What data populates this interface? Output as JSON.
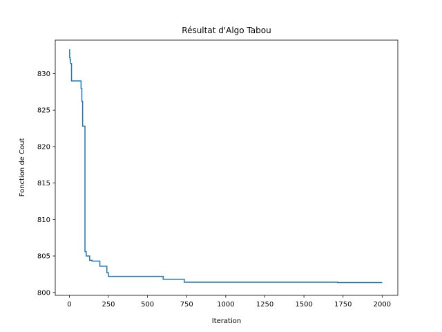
{
  "chart_data": {
    "type": "line",
    "title": "Résultat d'Algo Tabou",
    "xlabel": "Iteration",
    "ylabel": "Fonction de Cout",
    "xlim": [
      -90,
      2100
    ],
    "ylim": [
      799.6,
      834.6
    ],
    "xticks": [
      0,
      250,
      500,
      750,
      1000,
      1250,
      1500,
      1750,
      2000
    ],
    "yticks": [
      800,
      805,
      810,
      815,
      820,
      825,
      830
    ],
    "grid": false,
    "line_color": "#1f77b4",
    "step": "post",
    "series": [
      {
        "x": [
          0,
          2,
          5,
          8,
          14,
          70,
          75,
          80,
          85,
          90,
          100,
          103,
          108,
          115,
          130,
          140,
          145,
          195,
          200,
          240,
          250,
          265,
          600,
          735,
          1000,
          1500,
          1715,
          2000
        ],
        "y": [
          833.3,
          832.2,
          831.9,
          831.4,
          829.0,
          829.0,
          828.0,
          826.2,
          822.8,
          822.8,
          805.6,
          805.6,
          805.0,
          805.0,
          804.4,
          804.4,
          804.3,
          803.6,
          803.6,
          802.7,
          802.2,
          802.2,
          801.8,
          801.4,
          801.4,
          801.4,
          801.35,
          801.35
        ]
      }
    ]
  }
}
